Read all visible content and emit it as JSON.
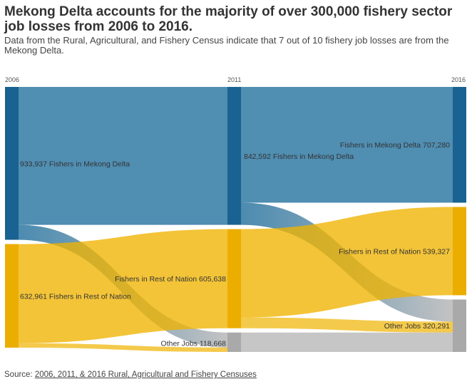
{
  "title": "Mekong Delta accounts for the majority of over 300,000 fishery sector job losses from 2006 to 2016.",
  "subtitle": "Data from the Rural, Agricultural, and Fishery Census indicate that 7 out of 10 fishery job losses are from the Mekong Delta.",
  "source": {
    "prefix": "Source: ",
    "link_text": "2006, 2011, & 2016 Rural, Agricultural and Fishery Censuses"
  },
  "colors": {
    "mekong": "#1f6e9c",
    "rest": "#f0b400",
    "other": "#b8b8b8"
  },
  "chart_data": {
    "type": "sankey",
    "columns": [
      "2006",
      "2011",
      "2016"
    ],
    "nodes": [
      {
        "id": "m06",
        "column": 0,
        "category": "mekong",
        "label": "933,937 Fishers in Mekong Delta",
        "value": 933937
      },
      {
        "id": "r06",
        "column": 0,
        "category": "rest",
        "label": "632,961 Fishers in Rest of Nation",
        "value": 632961
      },
      {
        "id": "m11",
        "column": 1,
        "category": "mekong",
        "label": "842,592 Fishers in Mekong Delta",
        "value": 842592
      },
      {
        "id": "r11",
        "column": 1,
        "category": "rest",
        "label": "Fishers in Rest of Nation 605,638",
        "value": 605638
      },
      {
        "id": "o11",
        "column": 1,
        "category": "other",
        "label": "Other Jobs 118,668",
        "value": 118668
      },
      {
        "id": "m16",
        "column": 2,
        "category": "mekong",
        "label": "Fishers in Mekong Delta 707,280",
        "value": 707280
      },
      {
        "id": "r16",
        "column": 2,
        "category": "rest",
        "label": "Fishers in Rest of Nation 539,327",
        "value": 539327
      },
      {
        "id": "o16",
        "column": 2,
        "category": "other",
        "label": "Other Jobs 320,291",
        "value": 320291
      }
    ],
    "links": [
      {
        "source": "m06",
        "target": "m11",
        "value": 842592
      },
      {
        "source": "m06",
        "target": "o11",
        "value": 91345
      },
      {
        "source": "r06",
        "target": "r11",
        "value": 605638
      },
      {
        "source": "r06",
        "target": "o11",
        "value": 27323
      },
      {
        "source": "m11",
        "target": "m16",
        "value": 707280
      },
      {
        "source": "m11",
        "target": "o16",
        "value": 135312
      },
      {
        "source": "r11",
        "target": "r16",
        "value": 539327
      },
      {
        "source": "r11",
        "target": "o16",
        "value": 66311
      },
      {
        "source": "o11",
        "target": "o16",
        "value": 118668
      }
    ]
  }
}
